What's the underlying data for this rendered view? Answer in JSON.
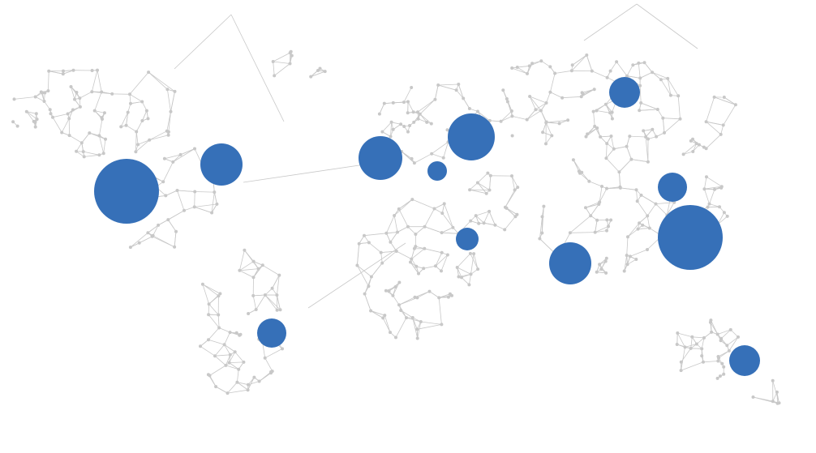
{
  "style": {
    "background": "#ffffff",
    "network_color": "#c8c8c8",
    "bubble_color": "#3670b8"
  },
  "bubbles": [
    {
      "id": "north-america-west",
      "size": "largest"
    },
    {
      "id": "north-america-east",
      "size": "medium"
    },
    {
      "id": "south-america",
      "size": "small"
    },
    {
      "id": "western-europe",
      "size": "medium"
    },
    {
      "id": "central-europe",
      "size": "tiny"
    },
    {
      "id": "eastern-europe",
      "size": "medium"
    },
    {
      "id": "middle-east",
      "size": "small"
    },
    {
      "id": "south-asia",
      "size": "medium"
    },
    {
      "id": "siberia",
      "size": "small"
    },
    {
      "id": "north-china",
      "size": "small"
    },
    {
      "id": "east-asia",
      "size": "largest"
    },
    {
      "id": "australia",
      "size": "small"
    }
  ]
}
